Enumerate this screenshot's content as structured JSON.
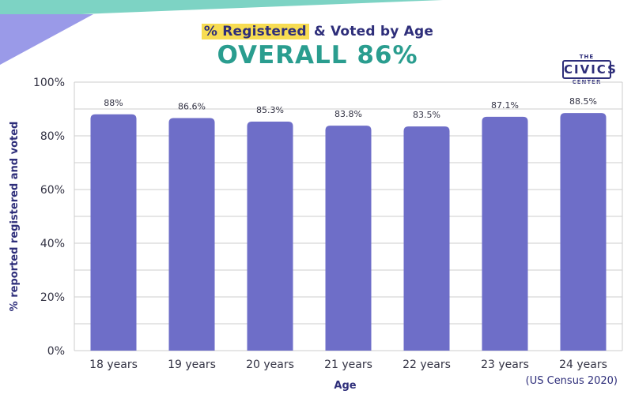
{
  "header": {
    "title_highlight": "% Registered",
    "title_rest": " & Voted by Age",
    "subtitle": "OVERALL 86%"
  },
  "logo": {
    "top": "THE",
    "main": "CIVICS",
    "bottom": "CENTER"
  },
  "source": "(US Census 2020)",
  "colors": {
    "bar": "#6e6ec8",
    "highlight": "#f7dc52",
    "subtitle": "#2a9d8f",
    "deco_teal": "#7dd3c4",
    "deco_purple": "#9a9ae8"
  },
  "chart_data": {
    "type": "bar",
    "categories": [
      "18 years",
      "19 years",
      "20 years",
      "21 years",
      "22 years",
      "23 years",
      "24 years"
    ],
    "values": [
      88,
      86.6,
      85.3,
      83.8,
      83.5,
      87.1,
      88.5
    ],
    "data_labels": [
      "88%",
      "86.6%",
      "85.3%",
      "83.8%",
      "83.5%",
      "87.1%",
      "88.5%"
    ],
    "xlabel": "Age",
    "ylabel": "% reported registered and voted",
    "ylim": [
      0,
      100
    ],
    "yticks": [
      0,
      20,
      40,
      60,
      80,
      100
    ],
    "ytick_labels": [
      "0%",
      "20%",
      "40%",
      "60%",
      "80%",
      "100%"
    ],
    "grid": true
  }
}
